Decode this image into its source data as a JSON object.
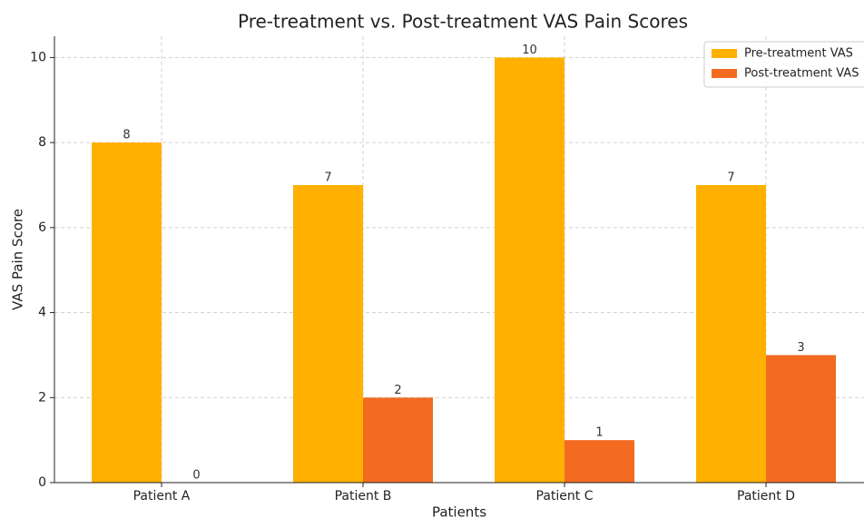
{
  "chart_data": {
    "type": "bar",
    "title": "Pre-treatment vs. Post-treatment VAS Pain Scores",
    "x_label": "Patients",
    "y_label": "VAS Pain Score",
    "categories": [
      "Patient A",
      "Patient B",
      "Patient C",
      "Patient D"
    ],
    "series": [
      {
        "name": "Pre-treatment VAS",
        "color": "#FFB000",
        "values": [
          8,
          7,
          10,
          7
        ]
      },
      {
        "name": "Post-treatment VAS",
        "color": "#F26B21",
        "values": [
          0,
          2,
          1,
          3
        ]
      }
    ],
    "ylim": [
      0,
      10.5
    ],
    "yticks": [
      0,
      2,
      4,
      6,
      8,
      10
    ],
    "grid": true,
    "legend": "upper right"
  }
}
